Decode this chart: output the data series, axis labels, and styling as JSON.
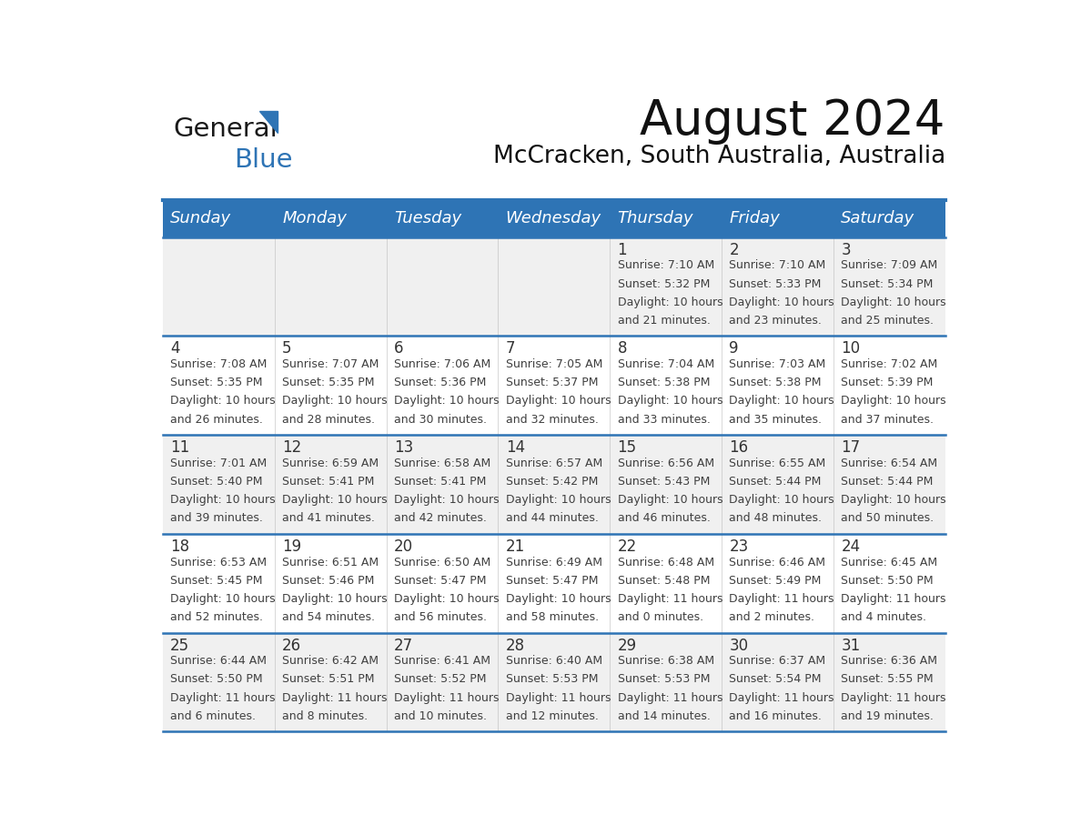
{
  "title": "August 2024",
  "subtitle": "McCracken, South Australia, Australia",
  "header_bg": "#2E74B5",
  "header_text_color": "#FFFFFF",
  "alt_row_bg": "#F0F0F0",
  "white_bg": "#FFFFFF",
  "border_color": "#2E74B5",
  "day_headers": [
    "Sunday",
    "Monday",
    "Tuesday",
    "Wednesday",
    "Thursday",
    "Friday",
    "Saturday"
  ],
  "cell_text_color": "#404040",
  "day_num_color": "#333333",
  "weeks": [
    [
      {
        "day": "",
        "sunrise": "",
        "sunset": "",
        "daylight": ""
      },
      {
        "day": "",
        "sunrise": "",
        "sunset": "",
        "daylight": ""
      },
      {
        "day": "",
        "sunrise": "",
        "sunset": "",
        "daylight": ""
      },
      {
        "day": "",
        "sunrise": "",
        "sunset": "",
        "daylight": ""
      },
      {
        "day": "1",
        "sunrise": "7:10 AM",
        "sunset": "5:32 PM",
        "daylight_l1": "Daylight: 10 hours",
        "daylight_l2": "and 21 minutes."
      },
      {
        "day": "2",
        "sunrise": "7:10 AM",
        "sunset": "5:33 PM",
        "daylight_l1": "Daylight: 10 hours",
        "daylight_l2": "and 23 minutes."
      },
      {
        "day": "3",
        "sunrise": "7:09 AM",
        "sunset": "5:34 PM",
        "daylight_l1": "Daylight: 10 hours",
        "daylight_l2": "and 25 minutes."
      }
    ],
    [
      {
        "day": "4",
        "sunrise": "7:08 AM",
        "sunset": "5:35 PM",
        "daylight_l1": "Daylight: 10 hours",
        "daylight_l2": "and 26 minutes."
      },
      {
        "day": "5",
        "sunrise": "7:07 AM",
        "sunset": "5:35 PM",
        "daylight_l1": "Daylight: 10 hours",
        "daylight_l2": "and 28 minutes."
      },
      {
        "day": "6",
        "sunrise": "7:06 AM",
        "sunset": "5:36 PM",
        "daylight_l1": "Daylight: 10 hours",
        "daylight_l2": "and 30 minutes."
      },
      {
        "day": "7",
        "sunrise": "7:05 AM",
        "sunset": "5:37 PM",
        "daylight_l1": "Daylight: 10 hours",
        "daylight_l2": "and 32 minutes."
      },
      {
        "day": "8",
        "sunrise": "7:04 AM",
        "sunset": "5:38 PM",
        "daylight_l1": "Daylight: 10 hours",
        "daylight_l2": "and 33 minutes."
      },
      {
        "day": "9",
        "sunrise": "7:03 AM",
        "sunset": "5:38 PM",
        "daylight_l1": "Daylight: 10 hours",
        "daylight_l2": "and 35 minutes."
      },
      {
        "day": "10",
        "sunrise": "7:02 AM",
        "sunset": "5:39 PM",
        "daylight_l1": "Daylight: 10 hours",
        "daylight_l2": "and 37 minutes."
      }
    ],
    [
      {
        "day": "11",
        "sunrise": "7:01 AM",
        "sunset": "5:40 PM",
        "daylight_l1": "Daylight: 10 hours",
        "daylight_l2": "and 39 minutes."
      },
      {
        "day": "12",
        "sunrise": "6:59 AM",
        "sunset": "5:41 PM",
        "daylight_l1": "Daylight: 10 hours",
        "daylight_l2": "and 41 minutes."
      },
      {
        "day": "13",
        "sunrise": "6:58 AM",
        "sunset": "5:41 PM",
        "daylight_l1": "Daylight: 10 hours",
        "daylight_l2": "and 42 minutes."
      },
      {
        "day": "14",
        "sunrise": "6:57 AM",
        "sunset": "5:42 PM",
        "daylight_l1": "Daylight: 10 hours",
        "daylight_l2": "and 44 minutes."
      },
      {
        "day": "15",
        "sunrise": "6:56 AM",
        "sunset": "5:43 PM",
        "daylight_l1": "Daylight: 10 hours",
        "daylight_l2": "and 46 minutes."
      },
      {
        "day": "16",
        "sunrise": "6:55 AM",
        "sunset": "5:44 PM",
        "daylight_l1": "Daylight: 10 hours",
        "daylight_l2": "and 48 minutes."
      },
      {
        "day": "17",
        "sunrise": "6:54 AM",
        "sunset": "5:44 PM",
        "daylight_l1": "Daylight: 10 hours",
        "daylight_l2": "and 50 minutes."
      }
    ],
    [
      {
        "day": "18",
        "sunrise": "6:53 AM",
        "sunset": "5:45 PM",
        "daylight_l1": "Daylight: 10 hours",
        "daylight_l2": "and 52 minutes."
      },
      {
        "day": "19",
        "sunrise": "6:51 AM",
        "sunset": "5:46 PM",
        "daylight_l1": "Daylight: 10 hours",
        "daylight_l2": "and 54 minutes."
      },
      {
        "day": "20",
        "sunrise": "6:50 AM",
        "sunset": "5:47 PM",
        "daylight_l1": "Daylight: 10 hours",
        "daylight_l2": "and 56 minutes."
      },
      {
        "day": "21",
        "sunrise": "6:49 AM",
        "sunset": "5:47 PM",
        "daylight_l1": "Daylight: 10 hours",
        "daylight_l2": "and 58 minutes."
      },
      {
        "day": "22",
        "sunrise": "6:48 AM",
        "sunset": "5:48 PM",
        "daylight_l1": "Daylight: 11 hours",
        "daylight_l2": "and 0 minutes."
      },
      {
        "day": "23",
        "sunrise": "6:46 AM",
        "sunset": "5:49 PM",
        "daylight_l1": "Daylight: 11 hours",
        "daylight_l2": "and 2 minutes."
      },
      {
        "day": "24",
        "sunrise": "6:45 AM",
        "sunset": "5:50 PM",
        "daylight_l1": "Daylight: 11 hours",
        "daylight_l2": "and 4 minutes."
      }
    ],
    [
      {
        "day": "25",
        "sunrise": "6:44 AM",
        "sunset": "5:50 PM",
        "daylight_l1": "Daylight: 11 hours",
        "daylight_l2": "and 6 minutes."
      },
      {
        "day": "26",
        "sunrise": "6:42 AM",
        "sunset": "5:51 PM",
        "daylight_l1": "Daylight: 11 hours",
        "daylight_l2": "and 8 minutes."
      },
      {
        "day": "27",
        "sunrise": "6:41 AM",
        "sunset": "5:52 PM",
        "daylight_l1": "Daylight: 11 hours",
        "daylight_l2": "and 10 minutes."
      },
      {
        "day": "28",
        "sunrise": "6:40 AM",
        "sunset": "5:53 PM",
        "daylight_l1": "Daylight: 11 hours",
        "daylight_l2": "and 12 minutes."
      },
      {
        "day": "29",
        "sunrise": "6:38 AM",
        "sunset": "5:53 PM",
        "daylight_l1": "Daylight: 11 hours",
        "daylight_l2": "and 14 minutes."
      },
      {
        "day": "30",
        "sunrise": "6:37 AM",
        "sunset": "5:54 PM",
        "daylight_l1": "Daylight: 11 hours",
        "daylight_l2": "and 16 minutes."
      },
      {
        "day": "31",
        "sunrise": "6:36 AM",
        "sunset": "5:55 PM",
        "daylight_l1": "Daylight: 11 hours",
        "daylight_l2": "and 19 minutes."
      }
    ]
  ],
  "logo_text1": "General",
  "logo_text2": "Blue",
  "logo_color1": "#1a1a1a",
  "logo_color2": "#2E74B5",
  "title_fontsize": 38,
  "subtitle_fontsize": 19,
  "header_fontsize": 13,
  "day_num_fontsize": 12,
  "cell_fontsize": 9
}
